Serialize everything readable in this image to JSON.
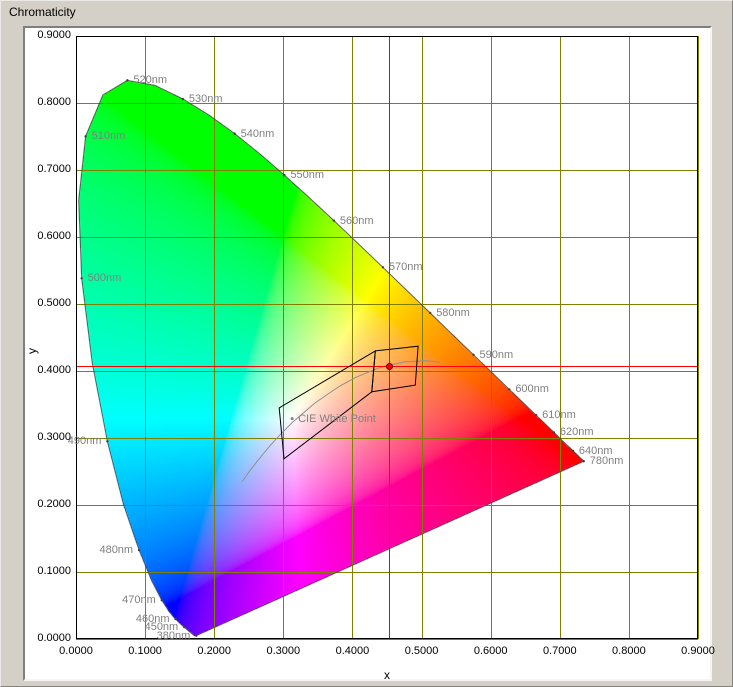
{
  "window": {
    "title": "Chromaticity"
  },
  "colors": {
    "window_bg": "#d4d0c8",
    "plot_bg": "#ffffff",
    "grid": "#808000",
    "plot_border": "#000000",
    "crosshair": "#ff0000",
    "marker_fill": "#ff0000",
    "marker_stroke": "#7e0000",
    "wavelength_label": "#808080",
    "locus_outline": "#404040",
    "planckian_curve": "#909090",
    "bin_outline": "#000000",
    "tick_label": "#000000"
  },
  "chart_data": {
    "type": "scatter",
    "title": "Chromaticity",
    "xlabel": "x",
    "ylabel": "y",
    "xlim": [
      0.0,
      0.9
    ],
    "ylim": [
      0.0,
      0.9
    ],
    "grid": true,
    "legend": "none",
    "x_ticks": [
      "0.0000",
      "0.1000",
      "0.2000",
      "0.3000",
      "0.4000",
      "0.5000",
      "0.6000",
      "0.7000",
      "0.8000",
      "0.9000"
    ],
    "y_ticks": [
      "0.0000",
      "0.1000",
      "0.2000",
      "0.3000",
      "0.4000",
      "0.5000",
      "0.6000",
      "0.7000",
      "0.8000",
      "0.9000"
    ],
    "measurement_point": {
      "x": 0.453,
      "y": 0.4075
    },
    "white_point": {
      "label": "CIE White Point",
      "x": 0.3127,
      "y": 0.329
    },
    "chromaticity_bins": [
      [
        [
          0.294,
          0.345
        ],
        [
          0.433,
          0.43
        ],
        [
          0.428,
          0.369
        ],
        [
          0.301,
          0.269
        ]
      ],
      [
        [
          0.433,
          0.43
        ],
        [
          0.495,
          0.437
        ],
        [
          0.491,
          0.379
        ],
        [
          0.428,
          0.369
        ]
      ]
    ],
    "wavelength_labels": [
      {
        "nm": 380,
        "text": "380nm",
        "side": "left"
      },
      {
        "nm": 450,
        "text": "450nm",
        "side": "left"
      },
      {
        "nm": 460,
        "text": "460nm",
        "side": "left"
      },
      {
        "nm": 470,
        "text": "470nm",
        "side": "left"
      },
      {
        "nm": 480,
        "text": "480nm",
        "side": "left"
      },
      {
        "nm": 490,
        "text": "490nm",
        "side": "left"
      },
      {
        "nm": 500,
        "text": "500nm",
        "side": "right"
      },
      {
        "nm": 510,
        "text": "510nm",
        "side": "right"
      },
      {
        "nm": 520,
        "text": "520nm",
        "side": "right"
      },
      {
        "nm": 530,
        "text": "530nm",
        "side": "right"
      },
      {
        "nm": 540,
        "text": "540nm",
        "side": "right"
      },
      {
        "nm": 550,
        "text": "550nm",
        "side": "right"
      },
      {
        "nm": 560,
        "text": "560nm",
        "side": "right"
      },
      {
        "nm": 570,
        "text": "570nm",
        "side": "right"
      },
      {
        "nm": 580,
        "text": "580nm",
        "side": "right"
      },
      {
        "nm": 590,
        "text": "590nm",
        "side": "right"
      },
      {
        "nm": 600,
        "text": "600nm",
        "side": "right"
      },
      {
        "nm": 610,
        "text": "610nm",
        "side": "right"
      },
      {
        "nm": 620,
        "text": "620nm",
        "side": "right"
      },
      {
        "nm": 640,
        "text": "640nm",
        "side": "right"
      },
      {
        "nm": 780,
        "text": "780nm",
        "side": "right"
      }
    ],
    "spectral_locus": [
      [
        380,
        0.1741,
        0.005
      ],
      [
        385,
        0.174,
        0.005
      ],
      [
        390,
        0.1738,
        0.0049
      ],
      [
        395,
        0.1736,
        0.0049
      ],
      [
        400,
        0.1733,
        0.0048
      ],
      [
        405,
        0.173,
        0.0048
      ],
      [
        410,
        0.1726,
        0.0048
      ],
      [
        415,
        0.1721,
        0.0048
      ],
      [
        420,
        0.1714,
        0.0051
      ],
      [
        425,
        0.1703,
        0.0058
      ],
      [
        430,
        0.1689,
        0.0069
      ],
      [
        435,
        0.1669,
        0.0086
      ],
      [
        440,
        0.1644,
        0.0109
      ],
      [
        445,
        0.1611,
        0.0138
      ],
      [
        450,
        0.1566,
        0.0177
      ],
      [
        455,
        0.151,
        0.0227
      ],
      [
        460,
        0.144,
        0.0297
      ],
      [
        465,
        0.1355,
        0.0399
      ],
      [
        470,
        0.1241,
        0.0578
      ],
      [
        475,
        0.1096,
        0.0868
      ],
      [
        480,
        0.0913,
        0.1327
      ],
      [
        485,
        0.0687,
        0.2007
      ],
      [
        490,
        0.0454,
        0.295
      ],
      [
        495,
        0.0235,
        0.4127
      ],
      [
        500,
        0.0082,
        0.5384
      ],
      [
        505,
        0.0039,
        0.6548
      ],
      [
        510,
        0.0139,
        0.7502
      ],
      [
        515,
        0.0389,
        0.812
      ],
      [
        520,
        0.0743,
        0.8338
      ],
      [
        525,
        0.1142,
        0.8262
      ],
      [
        530,
        0.1547,
        0.8059
      ],
      [
        535,
        0.1929,
        0.7816
      ],
      [
        540,
        0.2296,
        0.7543
      ],
      [
        545,
        0.2658,
        0.7243
      ],
      [
        550,
        0.3016,
        0.6923
      ],
      [
        555,
        0.3373,
        0.6589
      ],
      [
        560,
        0.3731,
        0.6245
      ],
      [
        565,
        0.4087,
        0.5896
      ],
      [
        570,
        0.4441,
        0.5547
      ],
      [
        575,
        0.4788,
        0.5202
      ],
      [
        580,
        0.5125,
        0.4866
      ],
      [
        585,
        0.5448,
        0.4544
      ],
      [
        590,
        0.5752,
        0.4242
      ],
      [
        595,
        0.6029,
        0.3965
      ],
      [
        600,
        0.627,
        0.3725
      ],
      [
        605,
        0.6482,
        0.3514
      ],
      [
        610,
        0.6658,
        0.334
      ],
      [
        615,
        0.6801,
        0.3197
      ],
      [
        620,
        0.6915,
        0.3083
      ],
      [
        625,
        0.7006,
        0.2993
      ],
      [
        630,
        0.7079,
        0.292
      ],
      [
        635,
        0.714,
        0.2859
      ],
      [
        640,
        0.719,
        0.2809
      ],
      [
        645,
        0.723,
        0.277
      ],
      [
        650,
        0.726,
        0.274
      ],
      [
        655,
        0.7283,
        0.2717
      ],
      [
        660,
        0.73,
        0.27
      ],
      [
        665,
        0.7311,
        0.2689
      ],
      [
        670,
        0.732,
        0.268
      ],
      [
        675,
        0.7327,
        0.2673
      ],
      [
        680,
        0.7334,
        0.2666
      ],
      [
        685,
        0.734,
        0.266
      ],
      [
        690,
        0.7344,
        0.2656
      ],
      [
        700,
        0.7347,
        0.2653
      ],
      [
        780,
        0.7347,
        0.2653
      ]
    ],
    "planckian_locus": [
      [
        0.2399,
        0.2343
      ],
      [
        0.2426,
        0.2381
      ],
      [
        0.2501,
        0.2489
      ],
      [
        0.2565,
        0.2577
      ],
      [
        0.2637,
        0.2673
      ],
      [
        0.2806,
        0.2883
      ],
      [
        0.2952,
        0.3048
      ],
      [
        0.3135,
        0.3237
      ],
      [
        0.3451,
        0.3516
      ],
      [
        0.3805,
        0.3768
      ],
      [
        0.4053,
        0.3907
      ],
      [
        0.4369,
        0.4041
      ],
      [
        0.4476,
        0.4074
      ],
      [
        0.477,
        0.4137
      ],
      [
        0.5056,
        0.4152
      ],
      [
        0.5267,
        0.4133
      ]
    ]
  }
}
